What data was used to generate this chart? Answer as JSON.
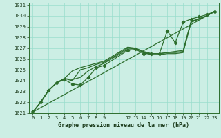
{
  "title": "Graphe pression niveau de la mer (hPa)",
  "bg_color": "#cceee4",
  "grid_color": "#99ddcc",
  "line_color": "#2d6e2d",
  "marker_color": "#2d6e2d",
  "xlim": [
    -0.5,
    23.5
  ],
  "ylim": [
    1021,
    1031.2
  ],
  "xtick_positions": [
    0,
    1,
    2,
    3,
    4,
    5,
    6,
    7,
    8,
    9,
    12,
    13,
    14,
    15,
    16,
    17,
    18,
    19,
    20,
    21,
    22,
    23
  ],
  "xtick_labels": [
    "0",
    "1",
    "2",
    "3",
    "4",
    "5",
    "6",
    "7",
    "8",
    "9",
    "12",
    "13",
    "14",
    "15",
    "16",
    "17",
    "18",
    "19",
    "20",
    "21",
    "22",
    "23"
  ],
  "ytick_positions": [
    1021,
    1022,
    1023,
    1024,
    1025,
    1026,
    1027,
    1028,
    1029,
    1030,
    1031
  ],
  "ytick_labels": [
    "1021",
    "1022",
    "1023",
    "1024",
    "1025",
    "1026",
    "1027",
    "1028",
    "1029",
    "1030",
    "1031"
  ],
  "grid_x_all": [
    0,
    1,
    2,
    3,
    4,
    5,
    6,
    7,
    8,
    9,
    10,
    11,
    12,
    13,
    14,
    15,
    16,
    17,
    18,
    19,
    20,
    21,
    22,
    23
  ],
  "series": [
    {
      "x": [
        0,
        1,
        2,
        3,
        4,
        5,
        6,
        7,
        8,
        9,
        12,
        13,
        14,
        15,
        16,
        17,
        18,
        19,
        20,
        21,
        22,
        23
      ],
      "y": [
        1021.1,
        1022.0,
        1023.1,
        1023.8,
        1024.1,
        1023.7,
        1023.6,
        1024.3,
        1025.2,
        1025.4,
        1026.8,
        1026.9,
        1026.5,
        1026.5,
        1026.5,
        1028.6,
        1027.5,
        1029.4,
        1029.7,
        1029.9,
        1030.1,
        1030.4
      ],
      "marker": true,
      "lw": 0.9
    },
    {
      "x": [
        0,
        1,
        2,
        3,
        4,
        5,
        6,
        7,
        8,
        9,
        12,
        13,
        14,
        15,
        16,
        17,
        18,
        19,
        20,
        21,
        22,
        23
      ],
      "y": [
        1021.1,
        1022.0,
        1023.1,
        1023.8,
        1024.2,
        1024.0,
        1025.0,
        1025.2,
        1025.5,
        1025.7,
        1027.0,
        1027.0,
        1026.6,
        1026.5,
        1026.5,
        1026.6,
        1026.6,
        1026.7,
        1029.4,
        1029.7,
        1030.0,
        1030.4
      ],
      "marker": false,
      "lw": 0.9
    },
    {
      "x": [
        0,
        1,
        2,
        3,
        4,
        5,
        6,
        7,
        8,
        9,
        12,
        13,
        14,
        15,
        16,
        17,
        18,
        19,
        20,
        21,
        22,
        23
      ],
      "y": [
        1021.1,
        1022.0,
        1023.1,
        1023.8,
        1024.2,
        1024.9,
        1025.2,
        1025.4,
        1025.6,
        1025.8,
        1027.1,
        1027.0,
        1026.7,
        1026.5,
        1026.5,
        1026.6,
        1026.7,
        1026.8,
        1029.5,
        1029.7,
        1030.0,
        1030.4
      ],
      "marker": false,
      "lw": 0.9
    },
    {
      "x": [
        0,
        1,
        2,
        3,
        4,
        5,
        6,
        7,
        8,
        9,
        12,
        13,
        14,
        15,
        16,
        17,
        18,
        19,
        20,
        21,
        22,
        23
      ],
      "y": [
        1021.1,
        1022.0,
        1023.1,
        1023.8,
        1024.2,
        1024.1,
        1024.3,
        1024.9,
        1025.3,
        1025.6,
        1026.9,
        1027.0,
        1026.6,
        1026.4,
        1026.4,
        1026.5,
        1026.5,
        1026.6,
        1029.4,
        1029.7,
        1030.0,
        1030.4
      ],
      "marker": false,
      "lw": 0.9
    },
    {
      "x": [
        0,
        23
      ],
      "y": [
        1021.1,
        1030.4
      ],
      "marker": false,
      "lw": 0.9
    }
  ]
}
